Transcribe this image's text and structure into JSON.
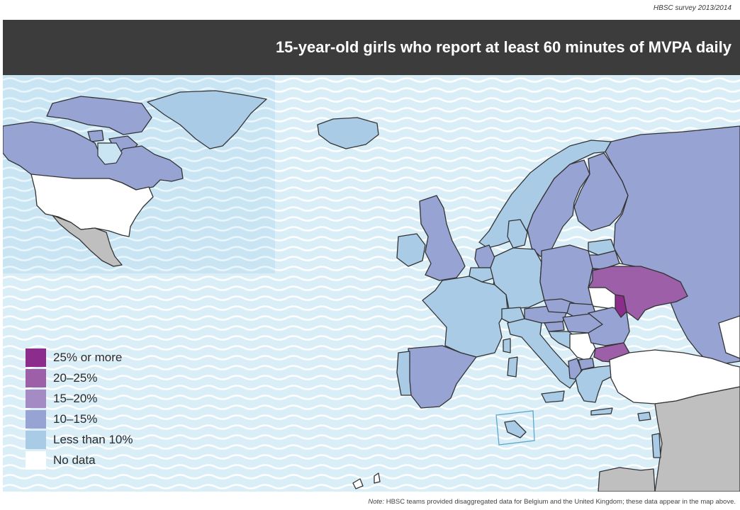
{
  "header": {
    "survey_label": "HBSC survey 2013/2014",
    "title": "15-year-old girls who report at least 60 minutes of MVPA daily"
  },
  "colors": {
    "header_bg": "#3c3c3c",
    "sea": "#daeef8",
    "sea_wave": "#ffffff",
    "inset_sea": "#c9e5f4",
    "border": "#333333",
    "not_in_survey": "#bfbfbf",
    "no_data": "#ffffff"
  },
  "legend": {
    "items": [
      {
        "label": "25% or more",
        "color": "#8c2c8c"
      },
      {
        "label": "20–25%",
        "color": "#9d5fa8"
      },
      {
        "label": "15–20%",
        "color": "#a58bc4"
      },
      {
        "label": "10–15%",
        "color": "#97a3d3"
      },
      {
        "label": "Less than 10%",
        "color": "#a9cbe6"
      },
      {
        "label": "No data",
        "color": "#ffffff"
      }
    ]
  },
  "footnote": {
    "label": "Note:",
    "text": "HBSC teams provided disaggregated data for Belgium and the United Kingdom; these data appear in the map above."
  }
}
